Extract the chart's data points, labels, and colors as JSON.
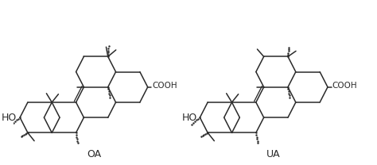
{
  "background_color": "#ffffff",
  "line_color": "#2a2a2a",
  "line_width": 1.1,
  "label_OA": "OA",
  "label_UA": "UA",
  "label_COOH": "COOH",
  "label_HO": "HO",
  "font_size_labels": 9,
  "font_size_groups": 7.5,
  "figsize": [
    4.74,
    2.08
  ],
  "dpi": 100,
  "xlim": [
    0,
    10
  ],
  "ylim": [
    0,
    4.4
  ]
}
